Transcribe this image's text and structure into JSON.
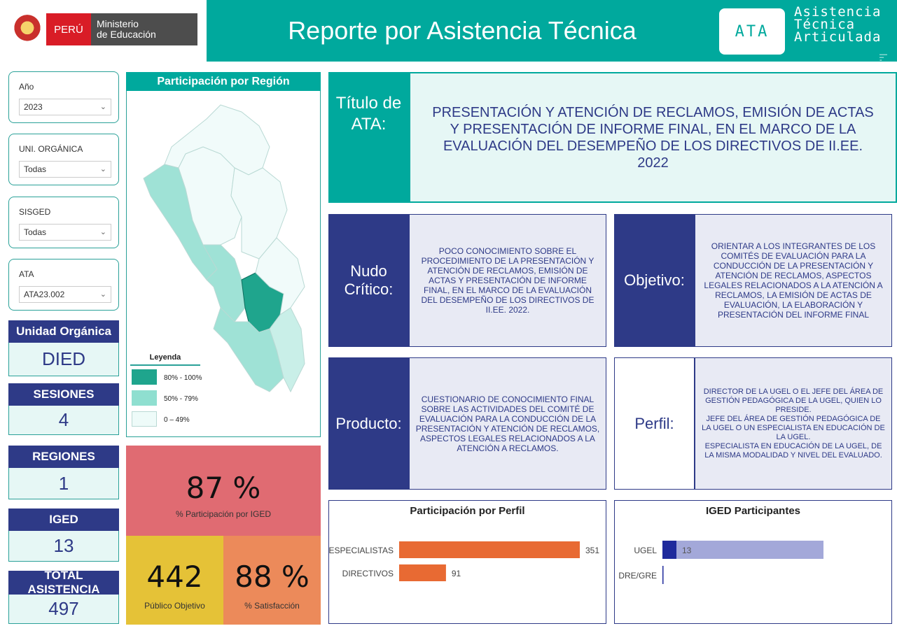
{
  "header": {
    "peru": "PERÚ",
    "ministry_line1": "Ministerio",
    "ministry_line2": "de Educación",
    "title": "Reporte por Asistencia Técnica",
    "ata_badge": "ATA",
    "ata_full_1": "Asistencia",
    "ata_full_2": "Técnica",
    "ata_full_3": "Articulada"
  },
  "filters": [
    {
      "label": "Año",
      "value": "2023"
    },
    {
      "label": "UNI. ORGÁNICA",
      "value": "Todas"
    },
    {
      "label": "SISGED",
      "value": "Todas"
    },
    {
      "label": "ATA",
      "value": "ATA23.002"
    }
  ],
  "kpis": [
    {
      "label": "Unidad Orgánica",
      "value": "DIED"
    },
    {
      "label": "SESIONES",
      "value": "4"
    },
    {
      "label": "REGIONES",
      "value": "1"
    },
    {
      "label": "IGED",
      "value": "13"
    },
    {
      "label": "TOTAL ASISTENCIA",
      "value": "497"
    }
  ],
  "map": {
    "title": "Participación por Región",
    "legend_title": "Leyenda",
    "legend": [
      {
        "label": "80% - 100%",
        "color": "#1fa58d"
      },
      {
        "label": "50% - 79%",
        "color": "#8fdfd0"
      },
      {
        "label": "0 – 49%",
        "color": "#eefbf9"
      }
    ]
  },
  "stats": {
    "participation_value": "87 %",
    "participation_label": "% Participación por IGED",
    "public_value": "442",
    "public_label": "Público Objetivo",
    "satisfaction_value": "88 %",
    "satisfaction_label": "% Satisfacción"
  },
  "ata_title": {
    "label": "Título de ATA:",
    "text": "PRESENTACIÓN Y ATENCIÓN DE RECLAMOS, EMISIÓN DE ACTAS Y PRESENTACIÓN DE INFORME FINAL, EN EL MARCO DE LA EVALUACIÓN DEL DESEMPEÑO DE LOS DIRECTIVOS DE II.EE. 2022"
  },
  "nudo": {
    "label": "Nudo Crítico:",
    "text": "POCO CONOCIMIENTO SOBRE EL PROCEDIMIENTO DE  LA PRESENTACIÓN Y ATENCIÓN DE RECLAMOS, EMISIÓN DE ACTAS Y PRESENTACIÓN DE INFORME FINAL, EN EL MARCO DE LA EVALUACIÓN DEL DESEMPEÑO DE LOS DIRECTIVOS DE II.EE. 2022."
  },
  "objetivo": {
    "label": "Objetivo:",
    "text": "ORIENTAR A LOS INTEGRANTES DE LOS COMITÉS DE EVALUACIÓN PARA LA CONDUCCIÓN DE LA PRESENTACIÓN Y ATENCIÓN DE RECLAMOS, ASPECTOS LEGALES RELACIONADOS A LA ATENCIÓN A RECLAMOS, LA EMISIÓN DE ACTAS DE EVALUACIÓN, LA ELABORACIÓN Y PRESENTACIÓN DEL INFORME FINAL"
  },
  "producto": {
    "label": "Producto:",
    "text": "CUESTIONARIO DE CONOCIMIENTO FINAL SOBRE LAS ACTIVIDADES DEL COMITÉ DE EVALUACIÓN PARA LA CONDUCCIÓN DE LA PRESENTACIÓN Y ATENCIÓN DE RECLAMOS, ASPECTOS LEGALES RELACIONADOS A LA ATENCIÓN A RECLAMOS."
  },
  "perfil": {
    "label": "Perfil:",
    "line1": "DIRECTOR DE LA UGEL O EL JEFE DEL ÁREA DE GESTIÓN PEDAGÓGICA DE LA UGEL, QUIEN LO PRESIDE.",
    "line2": "JEFE DEL ÁREA DE GESTIÓN PEDAGÓGICA DE LA UGEL O UN ESPECIALISTA EN EDUCACIÓN DE LA UGEL.",
    "line3": "ESPECIALISTA EN EDUCACIÓN DE LA UGEL, DE LA MISMA MODALIDAD Y NIVEL DEL EVALUADO."
  },
  "chart_data": [
    {
      "type": "bar",
      "title": "Participación por Perfil",
      "categories": [
        "ESPECIALISTAS",
        "DIRECTIVOS"
      ],
      "values": [
        351,
        91
      ],
      "color": "#e86a33"
    },
    {
      "type": "bar",
      "title": "IGED Participantes",
      "categories": [
        "UGEL",
        "DRE/GRE"
      ],
      "values": [
        13,
        0
      ],
      "color": "#1f2a9c",
      "background_color": "#a3a8d9"
    }
  ]
}
